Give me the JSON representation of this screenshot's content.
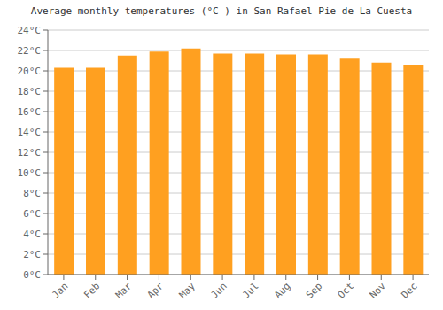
{
  "chart_data": {
    "type": "bar",
    "title": "Average monthly temperatures (°C ) in San Rafael Pie de La Cuesta",
    "categories": [
      "Jan",
      "Feb",
      "Mar",
      "Apr",
      "May",
      "Jun",
      "Jul",
      "Aug",
      "Sep",
      "Oct",
      "Nov",
      "Dec"
    ],
    "values": [
      20.3,
      20.3,
      21.5,
      21.9,
      22.2,
      21.7,
      21.7,
      21.6,
      21.6,
      21.2,
      20.8,
      20.6
    ],
    "color": "#FFA020",
    "ylim": [
      0,
      24
    ],
    "yticks": [
      {
        "value": 0,
        "label": "0°C"
      },
      {
        "value": 2,
        "label": "2°C"
      },
      {
        "value": 4,
        "label": "4°C"
      },
      {
        "value": 6,
        "label": "6°C"
      },
      {
        "value": 8,
        "label": "8°C"
      },
      {
        "value": 10,
        "label": "10°C"
      },
      {
        "value": 12,
        "label": "12°C"
      },
      {
        "value": 14,
        "label": "14°C"
      },
      {
        "value": 16,
        "label": "16°C"
      },
      {
        "value": 18,
        "label": "18°C"
      },
      {
        "value": 20,
        "label": "20°C"
      },
      {
        "value": 22,
        "label": "22°C"
      },
      {
        "value": 24,
        "label": "24°C"
      }
    ],
    "grid": true
  }
}
